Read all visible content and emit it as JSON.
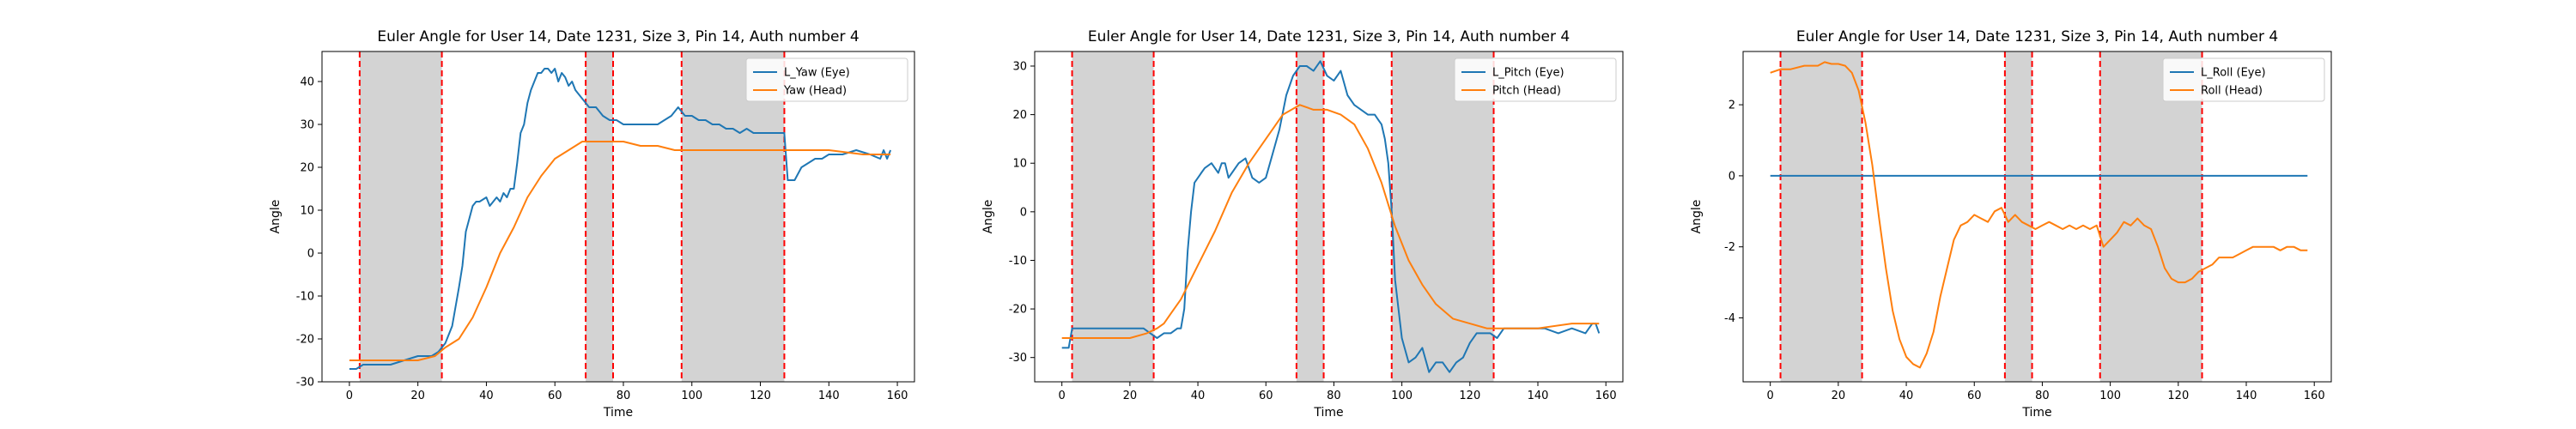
{
  "chart_data": [
    {
      "type": "line",
      "title": "Euler Angle for User 14, Date 1231, Size 3, Pin 14, Auth number 4",
      "xlabel": "Time",
      "ylabel": "Angle",
      "xlim": [
        -8,
        165
      ],
      "ylim": [
        -30,
        47
      ],
      "xticks": [
        0,
        20,
        40,
        60,
        80,
        100,
        120,
        140,
        160
      ],
      "yticks": [
        -30,
        -20,
        -10,
        0,
        10,
        20,
        30,
        40
      ],
      "legend_position": "top-right",
      "shaded_regions": [
        [
          3,
          27
        ],
        [
          69,
          77
        ],
        [
          97,
          127
        ]
      ],
      "vlines": [
        3,
        27,
        69,
        77,
        97,
        127
      ],
      "series": [
        {
          "name": "L_Yaw (Eye)",
          "color": "#1f77b4",
          "x": [
            0,
            2,
            4,
            8,
            12,
            16,
            20,
            24,
            26,
            28,
            30,
            32,
            33,
            34,
            35,
            36,
            37,
            38,
            40,
            41,
            42,
            43,
            44,
            45,
            46,
            47,
            48,
            49,
            50,
            51,
            52,
            53,
            54,
            55,
            56,
            57,
            58,
            59,
            60,
            61,
            62,
            63,
            64,
            65,
            66,
            67,
            68,
            69,
            70,
            72,
            74,
            76,
            78,
            80,
            82,
            84,
            86,
            88,
            90,
            92,
            94,
            95,
            96,
            97,
            98,
            99,
            100,
            102,
            104,
            106,
            108,
            110,
            112,
            114,
            116,
            118,
            120,
            122,
            124,
            126,
            127,
            128,
            130,
            132,
            134,
            136,
            138,
            140,
            144,
            148,
            152,
            155,
            156,
            157,
            158
          ],
          "y": [
            -27,
            -27,
            -26,
            -26,
            -26,
            -25,
            -24,
            -24,
            -23,
            -21,
            -17,
            -8,
            -3,
            5,
            8,
            11,
            12,
            12,
            13,
            11,
            12,
            13,
            12,
            14,
            13,
            15,
            15,
            21,
            28,
            30,
            35,
            38,
            40,
            42,
            42,
            43,
            43,
            42,
            43,
            40,
            42,
            41,
            39,
            40,
            38,
            37,
            36,
            35,
            34,
            34,
            32,
            31,
            31,
            30,
            30,
            30,
            30,
            30,
            30,
            31,
            32,
            33,
            34,
            33,
            32,
            32,
            32,
            31,
            31,
            30,
            30,
            29,
            29,
            28,
            29,
            28,
            28,
            28,
            28,
            28,
            28,
            17,
            17,
            20,
            21,
            22,
            22,
            23,
            23,
            24,
            23,
            22,
            24,
            22,
            24
          ]
        },
        {
          "name": "Yaw (Head)",
          "color": "#ff7f0e",
          "x": [
            0,
            5,
            10,
            15,
            20,
            25,
            28,
            32,
            36,
            40,
            44,
            48,
            52,
            56,
            60,
            64,
            68,
            72,
            76,
            80,
            85,
            90,
            95,
            100,
            110,
            120,
            130,
            140,
            150,
            158
          ],
          "y": [
            -25,
            -25,
            -25,
            -25,
            -25,
            -24,
            -22,
            -20,
            -15,
            -8,
            0,
            6,
            13,
            18,
            22,
            24,
            26,
            26,
            26,
            26,
            25,
            25,
            24,
            24,
            24,
            24,
            24,
            24,
            23,
            23
          ]
        }
      ]
    },
    {
      "type": "line",
      "title": "Euler Angle for User 14, Date 1231, Size 3, Pin 14, Auth number 4",
      "xlabel": "Time",
      "ylabel": "Angle",
      "xlim": [
        -8,
        165
      ],
      "ylim": [
        -35,
        33
      ],
      "xticks": [
        0,
        20,
        40,
        60,
        80,
        100,
        120,
        140,
        160
      ],
      "yticks": [
        -30,
        -20,
        -10,
        0,
        10,
        20,
        30
      ],
      "legend_position": "top-right",
      "shaded_regions": [
        [
          3,
          27
        ],
        [
          69,
          77
        ],
        [
          97,
          127
        ]
      ],
      "vlines": [
        3,
        27,
        69,
        77,
        97,
        127
      ],
      "series": [
        {
          "name": "L_Pitch (Eye)",
          "color": "#1f77b4",
          "x": [
            0,
            2,
            3,
            4,
            8,
            12,
            16,
            20,
            24,
            26,
            28,
            30,
            32,
            34,
            35,
            36,
            37,
            38,
            39,
            40,
            41,
            42,
            44,
            45,
            46,
            47,
            48,
            49,
            50,
            52,
            54,
            56,
            58,
            60,
            62,
            64,
            66,
            68,
            70,
            72,
            74,
            76,
            78,
            80,
            82,
            84,
            86,
            88,
            90,
            92,
            93,
            94,
            95,
            96,
            97,
            98,
            100,
            102,
            104,
            106,
            108,
            110,
            112,
            114,
            116,
            118,
            120,
            122,
            124,
            126,
            128,
            130,
            134,
            138,
            142,
            146,
            150,
            154,
            156,
            157,
            158
          ],
          "y": [
            -28,
            -28,
            -24,
            -24,
            -24,
            -24,
            -24,
            -24,
            -24,
            -25,
            -26,
            -25,
            -25,
            -24,
            -24,
            -20,
            -8,
            0,
            6,
            7,
            8,
            9,
            10,
            9,
            8,
            10,
            10,
            7,
            8,
            10,
            11,
            7,
            6,
            7,
            12,
            17,
            24,
            28,
            30,
            30,
            29,
            31,
            28,
            27,
            29,
            24,
            22,
            21,
            20,
            20,
            19,
            18,
            15,
            10,
            0,
            -14,
            -26,
            -31,
            -30,
            -28,
            -33,
            -31,
            -31,
            -33,
            -31,
            -30,
            -27,
            -25,
            -25,
            -25,
            -26,
            -24,
            -24,
            -24,
            -24,
            -25,
            -24,
            -25,
            -23,
            -23,
            -25
          ]
        },
        {
          "name": "Pitch (Head)",
          "color": "#ff7f0e",
          "x": [
            0,
            5,
            10,
            15,
            20,
            25,
            28,
            30,
            32,
            35,
            40,
            45,
            50,
            55,
            60,
            65,
            70,
            74,
            78,
            82,
            86,
            90,
            94,
            98,
            102,
            106,
            110,
            115,
            120,
            125,
            130,
            140,
            150,
            158
          ],
          "y": [
            -26,
            -26,
            -26,
            -26,
            -26,
            -25,
            -24,
            -23,
            -21,
            -18,
            -11,
            -4,
            4,
            10,
            15,
            20,
            22,
            21,
            21,
            20,
            18,
            13,
            6,
            -3,
            -10,
            -15,
            -19,
            -22,
            -23,
            -24,
            -24,
            -24,
            -23,
            -23
          ]
        }
      ]
    },
    {
      "type": "line",
      "title": "Euler Angle for User 14, Date 1231, Size 3, Pin 14, Auth number 4",
      "xlabel": "Time",
      "ylabel": "Angle",
      "xlim": [
        -8,
        165
      ],
      "ylim": [
        -5.8,
        3.5
      ],
      "xticks": [
        0,
        20,
        40,
        60,
        80,
        100,
        120,
        140,
        160
      ],
      "yticks": [
        -4,
        -2,
        0,
        2
      ],
      "legend_position": "top-right",
      "shaded_regions": [
        [
          3,
          27
        ],
        [
          69,
          77
        ],
        [
          97,
          127
        ]
      ],
      "vlines": [
        3,
        27,
        69,
        77,
        97,
        127
      ],
      "series": [
        {
          "name": "L_Roll (Eye)",
          "color": "#1f77b4",
          "x": [
            0,
            158
          ],
          "y": [
            0,
            0
          ]
        },
        {
          "name": "Roll (Head)",
          "color": "#ff7f0e",
          "x": [
            0,
            3,
            6,
            10,
            14,
            16,
            18,
            20,
            22,
            24,
            26,
            28,
            30,
            32,
            34,
            36,
            38,
            40,
            42,
            44,
            46,
            48,
            50,
            52,
            54,
            56,
            58,
            60,
            62,
            64,
            66,
            68,
            70,
            72,
            74,
            76,
            78,
            80,
            82,
            84,
            86,
            88,
            90,
            92,
            94,
            96,
            98,
            100,
            102,
            104,
            106,
            108,
            110,
            112,
            114,
            116,
            118,
            120,
            122,
            124,
            126,
            128,
            130,
            132,
            134,
            136,
            138,
            140,
            142,
            144,
            146,
            148,
            150,
            152,
            154,
            156,
            158
          ],
          "y": [
            2.9,
            3.0,
            3.0,
            3.1,
            3.1,
            3.2,
            3.15,
            3.15,
            3.1,
            2.9,
            2.4,
            1.5,
            0.3,
            -1.2,
            -2.6,
            -3.8,
            -4.6,
            -5.1,
            -5.3,
            -5.4,
            -5.0,
            -4.4,
            -3.4,
            -2.6,
            -1.8,
            -1.4,
            -1.3,
            -1.1,
            -1.2,
            -1.3,
            -1.0,
            -0.9,
            -1.3,
            -1.1,
            -1.3,
            -1.4,
            -1.5,
            -1.4,
            -1.3,
            -1.4,
            -1.5,
            -1.4,
            -1.5,
            -1.4,
            -1.5,
            -1.4,
            -2.0,
            -1.8,
            -1.6,
            -1.3,
            -1.4,
            -1.2,
            -1.4,
            -1.5,
            -2.0,
            -2.6,
            -2.9,
            -3.0,
            -3.0,
            -2.9,
            -2.7,
            -2.6,
            -2.5,
            -2.3,
            -2.3,
            -2.3,
            -2.2,
            -2.1,
            -2.0,
            -2.0,
            -2.0,
            -2.0,
            -2.1,
            -2.0,
            -2.0,
            -2.1,
            -2.1
          ]
        }
      ]
    }
  ]
}
